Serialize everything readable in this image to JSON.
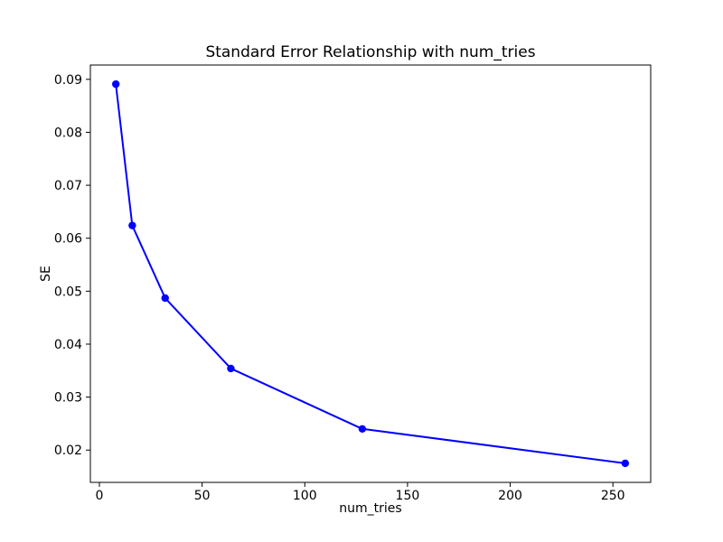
{
  "figure": {
    "background": "#ffffff"
  },
  "chart_data": {
    "type": "line",
    "title": "Standard Error Relationship with num_tries",
    "xlabel": "num_tries",
    "ylabel": "SE",
    "x": [
      8,
      16,
      32,
      64,
      128,
      256
    ],
    "y": [
      0.0891,
      0.0624,
      0.0487,
      0.0354,
      0.024,
      0.0175
    ],
    "xticks": [
      0,
      50,
      100,
      150,
      200,
      250
    ],
    "xtick_labels": [
      "0",
      "50",
      "100",
      "150",
      "200",
      "250"
    ],
    "yticks": [
      0.02,
      0.03,
      0.04,
      0.05,
      0.06,
      0.07,
      0.08,
      0.09
    ],
    "ytick_labels": [
      "0.02",
      "0.03",
      "0.04",
      "0.05",
      "0.06",
      "0.07",
      "0.08",
      "0.09"
    ],
    "xlim": [
      -4.4,
      268.4
    ],
    "ylim": [
      0.0139,
      0.0927
    ],
    "grid": false,
    "legend": "none",
    "line_color": "#0000ff",
    "marker": "o",
    "marker_color": "#0000ff",
    "axis_color": "#000000",
    "text_color": "#000000"
  }
}
